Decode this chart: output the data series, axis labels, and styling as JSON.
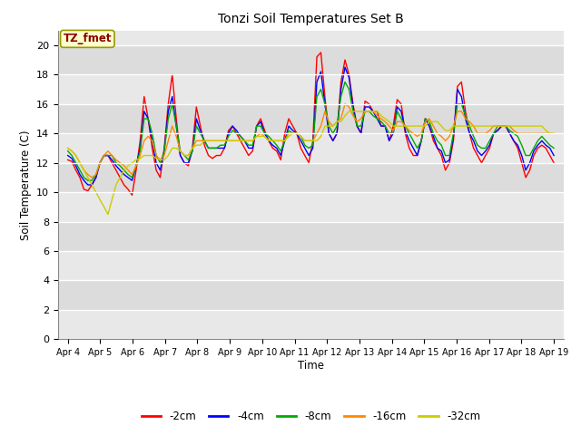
{
  "title": "Tonzi Soil Temperatures Set B",
  "xlabel": "Time",
  "ylabel": "Soil Temperature (C)",
  "ylim": [
    0,
    21
  ],
  "yticks": [
    0,
    2,
    4,
    6,
    8,
    10,
    12,
    14,
    16,
    18,
    20
  ],
  "x_labels": [
    "Apr 4",
    "Apr 5",
    "Apr 6",
    "Apr 7",
    "Apr 8",
    "Apr 9",
    "Apr 10",
    "Apr 11",
    "Apr 12",
    "Apr 13",
    "Apr 14",
    "Apr 15",
    "Apr 16",
    "Apr 17",
    "Apr 18",
    "Apr 19"
  ],
  "annotation_text": "TZ_fmet",
  "annotation_color": "#8B0000",
  "annotation_bg": "#FFFFCC",
  "series": [
    {
      "label": "-2cm",
      "color": "#FF0000",
      "data": [
        12.2,
        12.1,
        11.5,
        11.0,
        10.2,
        10.1,
        10.5,
        11.0,
        12.0,
        12.5,
        12.5,
        12.0,
        11.5,
        11.0,
        10.5,
        10.2,
        9.8,
        11.5,
        13.5,
        16.5,
        15.0,
        13.0,
        11.5,
        11.0,
        13.0,
        16.0,
        18.0,
        15.0,
        12.5,
        12.0,
        11.8,
        13.0,
        15.8,
        14.5,
        13.2,
        12.5,
        12.3,
        12.5,
        12.5,
        13.0,
        14.2,
        14.5,
        14.0,
        13.5,
        13.0,
        12.5,
        12.8,
        14.5,
        15.0,
        14.2,
        13.5,
        13.0,
        12.8,
        12.2,
        14.0,
        15.0,
        14.5,
        14.0,
        13.0,
        12.5,
        12.0,
        13.5,
        19.2,
        19.5,
        16.5,
        14.0,
        13.5,
        14.0,
        17.5,
        19.0,
        18.0,
        16.0,
        14.5,
        14.0,
        16.2,
        16.0,
        15.5,
        15.5,
        14.5,
        14.5,
        13.5,
        14.5,
        16.3,
        16.0,
        14.0,
        13.0,
        12.5,
        12.5,
        13.5,
        15.0,
        14.5,
        13.5,
        13.0,
        12.5,
        11.5,
        12.0,
        13.5,
        17.2,
        17.5,
        15.5,
        14.0,
        13.0,
        12.5,
        12.0,
        12.5,
        13.0,
        14.0,
        14.2,
        14.5,
        14.5,
        14.0,
        13.5,
        13.0,
        12.0,
        11.0,
        11.5,
        12.5,
        13.0,
        13.2,
        13.0,
        12.5,
        12.0
      ]
    },
    {
      "label": "-4cm",
      "color": "#0000FF",
      "data": [
        12.5,
        12.3,
        11.8,
        11.2,
        10.8,
        10.5,
        10.5,
        11.0,
        12.0,
        12.5,
        12.5,
        12.2,
        11.8,
        11.5,
        11.2,
        11.0,
        10.8,
        11.8,
        13.0,
        15.5,
        15.0,
        13.5,
        12.0,
        11.5,
        12.8,
        15.5,
        16.5,
        14.5,
        12.5,
        12.0,
        12.0,
        12.8,
        15.0,
        14.2,
        13.5,
        13.0,
        13.0,
        13.0,
        13.0,
        13.0,
        14.0,
        14.5,
        14.2,
        13.8,
        13.5,
        13.0,
        13.0,
        14.5,
        14.8,
        14.0,
        13.5,
        13.2,
        13.0,
        12.5,
        13.5,
        14.5,
        14.2,
        14.0,
        13.5,
        13.0,
        12.5,
        13.0,
        17.5,
        18.2,
        16.0,
        14.0,
        13.5,
        14.0,
        17.0,
        18.5,
        17.8,
        15.8,
        14.5,
        14.0,
        15.8,
        15.8,
        15.5,
        15.0,
        14.5,
        14.5,
        13.5,
        14.0,
        15.8,
        15.5,
        14.2,
        13.5,
        13.0,
        12.5,
        13.5,
        15.0,
        14.5,
        13.8,
        13.0,
        12.8,
        12.0,
        12.2,
        13.8,
        17.0,
        16.5,
        15.0,
        14.0,
        13.5,
        12.8,
        12.5,
        12.8,
        13.2,
        14.0,
        14.2,
        14.5,
        14.5,
        14.0,
        13.5,
        13.2,
        12.5,
        11.5,
        12.0,
        12.8,
        13.2,
        13.5,
        13.2,
        13.0,
        12.5
      ]
    },
    {
      "label": "-8cm",
      "color": "#00AA00",
      "data": [
        12.8,
        12.5,
        12.0,
        11.5,
        11.0,
        10.8,
        10.8,
        11.2,
        12.0,
        12.5,
        12.5,
        12.5,
        12.0,
        11.8,
        11.5,
        11.2,
        11.0,
        11.8,
        12.8,
        15.0,
        15.0,
        14.0,
        12.5,
        12.0,
        12.8,
        15.0,
        16.0,
        14.5,
        12.8,
        12.5,
        12.2,
        12.8,
        14.5,
        14.0,
        13.5,
        13.0,
        13.0,
        13.0,
        13.2,
        13.2,
        13.8,
        14.2,
        14.0,
        13.8,
        13.5,
        13.2,
        13.2,
        14.5,
        14.5,
        14.0,
        13.8,
        13.5,
        13.2,
        12.8,
        13.5,
        14.2,
        14.0,
        14.0,
        13.8,
        13.2,
        13.0,
        13.2,
        16.5,
        17.0,
        16.0,
        14.5,
        14.0,
        14.5,
        16.5,
        17.5,
        17.0,
        15.5,
        14.5,
        14.5,
        15.5,
        15.5,
        15.2,
        15.0,
        14.8,
        14.5,
        14.0,
        14.0,
        15.5,
        15.0,
        14.5,
        14.0,
        13.5,
        13.0,
        13.5,
        15.0,
        14.8,
        14.0,
        13.5,
        13.2,
        12.5,
        12.5,
        14.0,
        16.0,
        16.0,
        15.2,
        14.5,
        13.8,
        13.2,
        13.0,
        13.0,
        13.5,
        14.0,
        14.5,
        14.5,
        14.5,
        14.2,
        14.0,
        13.8,
        13.2,
        12.5,
        12.5,
        13.0,
        13.5,
        13.8,
        13.5,
        13.2,
        13.0
      ]
    },
    {
      "label": "-16cm",
      "color": "#FF8800",
      "data": [
        13.0,
        12.8,
        12.5,
        12.0,
        11.5,
        11.2,
        11.0,
        11.2,
        12.0,
        12.5,
        12.8,
        12.5,
        12.2,
        12.0,
        11.8,
        11.5,
        11.2,
        11.8,
        12.5,
        13.5,
        13.8,
        13.5,
        12.5,
        12.2,
        12.5,
        13.5,
        14.5,
        13.8,
        12.8,
        12.5,
        12.5,
        13.0,
        13.5,
        13.5,
        13.5,
        13.5,
        13.5,
        13.5,
        13.5,
        13.5,
        13.5,
        13.5,
        13.5,
        13.5,
        13.5,
        13.5,
        13.5,
        13.8,
        14.0,
        13.8,
        13.5,
        13.5,
        13.5,
        13.5,
        13.5,
        14.0,
        14.0,
        14.0,
        13.8,
        13.5,
        13.5,
        13.5,
        14.0,
        14.5,
        15.5,
        14.8,
        14.5,
        14.8,
        15.0,
        16.0,
        15.8,
        15.2,
        14.8,
        15.0,
        15.5,
        15.5,
        15.5,
        15.2,
        15.0,
        14.8,
        14.5,
        14.2,
        14.8,
        14.8,
        14.5,
        14.2,
        14.0,
        13.8,
        14.0,
        14.8,
        15.0,
        14.5,
        14.0,
        13.8,
        13.5,
        13.8,
        14.5,
        15.5,
        15.5,
        15.0,
        14.8,
        14.5,
        14.0,
        14.0,
        14.0,
        14.2,
        14.5,
        14.5,
        14.5,
        14.5,
        14.5,
        14.2,
        14.0,
        14.0,
        14.0,
        14.0,
        14.0,
        14.0,
        14.0,
        14.0,
        14.0,
        14.0
      ]
    },
    {
      "label": "-32cm",
      "color": "#CCCC00",
      "data": [
        13.0,
        12.8,
        12.5,
        12.0,
        11.5,
        11.0,
        10.5,
        10.0,
        9.5,
        9.0,
        8.5,
        9.5,
        10.5,
        11.0,
        11.5,
        11.8,
        12.0,
        12.2,
        12.3,
        12.5,
        12.5,
        12.5,
        12.3,
        12.2,
        12.2,
        12.5,
        13.0,
        13.0,
        12.8,
        12.5,
        12.5,
        13.0,
        13.2,
        13.2,
        13.5,
        13.5,
        13.5,
        13.5,
        13.5,
        13.5,
        13.5,
        13.5,
        13.5,
        13.5,
        13.5,
        13.5,
        13.5,
        13.8,
        13.8,
        13.8,
        13.5,
        13.5,
        13.5,
        13.5,
        13.5,
        13.8,
        14.0,
        14.0,
        13.8,
        13.5,
        13.5,
        13.5,
        13.5,
        13.8,
        14.5,
        14.5,
        14.5,
        14.8,
        14.8,
        15.2,
        15.5,
        15.5,
        15.5,
        15.5,
        15.5,
        15.5,
        15.5,
        15.5,
        15.2,
        15.0,
        14.8,
        14.5,
        14.5,
        14.5,
        14.5,
        14.5,
        14.5,
        14.5,
        14.5,
        14.5,
        14.8,
        14.8,
        14.8,
        14.5,
        14.2,
        14.2,
        14.5,
        14.5,
        14.5,
        14.5,
        14.5,
        14.5,
        14.5,
        14.5,
        14.5,
        14.5,
        14.5,
        14.5,
        14.5,
        14.5,
        14.5,
        14.5,
        14.5,
        14.5,
        14.5,
        14.5,
        14.5,
        14.5,
        14.5,
        14.2,
        14.0,
        14.0
      ]
    }
  ],
  "fig_bg": "#FFFFFF",
  "plot_bg": "#E8E8E8",
  "grid_color": "#FFFFFF",
  "legend_labels": [
    "-2cm",
    "-4cm",
    "-8cm",
    "-16cm",
    "-32cm"
  ],
  "legend_colors": [
    "#FF0000",
    "#0000FF",
    "#00AA00",
    "#FF8800",
    "#CCCC00"
  ],
  "band_colors": [
    "#E8E8E8",
    "#DCDCDC"
  ]
}
